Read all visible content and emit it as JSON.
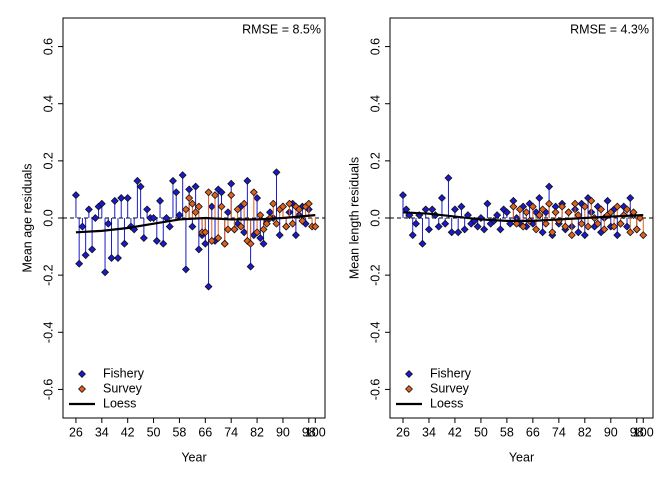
{
  "chart_data": [
    {
      "type": "scatter",
      "ylabel": "Mean age residuals",
      "xlabel": "Year",
      "annotation": "RMSE = 8.5%",
      "xlim": [
        22,
        103
      ],
      "ylim": [
        -0.7,
        0.7
      ],
      "xticks": [
        26,
        34,
        42,
        50,
        58,
        66,
        74,
        82,
        90,
        98,
        100
      ],
      "yticks": [
        -0.6,
        -0.4,
        -0.2,
        {
          "value": 0,
          "label": "0.0"
        },
        0.2,
        0.4,
        0.6
      ],
      "legend": "bottom-left",
      "series": [
        {
          "name": "Fishery",
          "color": "#1a1acc",
          "style": "points",
          "x": [
            26,
            27,
            28,
            29,
            30,
            31,
            32,
            33,
            34,
            35,
            36,
            37,
            38,
            39,
            40,
            41,
            42,
            43,
            44,
            45,
            46,
            47,
            48,
            49,
            50,
            51,
            52,
            53,
            54,
            55,
            56,
            57,
            58,
            59,
            60,
            61,
            62,
            63,
            64,
            65,
            66,
            67,
            68,
            69,
            70,
            71,
            72,
            73,
            74,
            75,
            76,
            77,
            78,
            79,
            80,
            81,
            82,
            83,
            84,
            85,
            86,
            87,
            88,
            89,
            90,
            91,
            92,
            93,
            94,
            95,
            96,
            97,
            98
          ],
          "values": [
            0.08,
            -0.16,
            -0.03,
            -0.13,
            0.03,
            -0.11,
            0,
            0.04,
            0.05,
            -0.19,
            -0.02,
            -0.14,
            0.06,
            -0.14,
            0.07,
            -0.09,
            0.07,
            -0.03,
            -0.04,
            0.13,
            0.11,
            -0.07,
            0.03,
            0,
            0,
            -0.08,
            0.06,
            -0.09,
            0,
            -0.03,
            0.13,
            0.09,
            0.01,
            0.15,
            -0.18,
            0.1,
            -0.03,
            0.11,
            -0.11,
            -0.06,
            -0.09,
            -0.24,
            0.04,
            -0.08,
            0.1,
            0.09,
            -0.09,
            0.02,
            0.12,
            -0.04,
            -0.02,
            0.04,
            -0.05,
            0.13,
            -0.17,
            -0.06,
            0.07,
            -0.07,
            -0.09,
            -0.01,
            0.02,
            0,
            0.16,
            -0.06,
            0.04,
            -0.03,
            0.02,
            0.05,
            -0.06,
            0.01,
            0.04,
            -0.02,
            0.03
          ]
        },
        {
          "name": "Survey",
          "color": "#e0601e",
          "style": "points",
          "x": [
            60,
            61,
            62,
            63,
            64,
            65,
            66,
            67,
            68,
            69,
            70,
            71,
            72,
            73,
            74,
            75,
            76,
            77,
            78,
            79,
            80,
            81,
            82,
            83,
            84,
            85,
            86,
            87,
            88,
            89,
            90,
            91,
            92,
            93,
            94,
            95,
            96,
            97,
            98,
            99,
            100
          ],
          "values": [
            0.03,
            0.07,
            0.05,
            0.02,
            0.04,
            -0.05,
            -0.05,
            0.09,
            -0.08,
            0.08,
            -0.07,
            0.04,
            -0.09,
            -0.04,
            0.08,
            -0.04,
            0.03,
            -0.03,
            0.05,
            -0.08,
            -0.09,
            0.09,
            -0.05,
            0.01,
            -0.04,
            -0.02,
            0,
            0.05,
            -0.02,
            0.03,
            0.04,
            -0.03,
            0.05,
            -0.02,
            0.04,
            0.03,
            -0.01,
            0.04,
            0.05,
            -0.03,
            -0.03
          ]
        },
        {
          "name": "Loess",
          "color": "#000000",
          "style": "line",
          "x": [
            26,
            34,
            42,
            50,
            58,
            66,
            74,
            82,
            90,
            100
          ],
          "values": [
            -0.05,
            -0.045,
            -0.035,
            -0.02,
            -0.005,
            0,
            -0.005,
            -0.005,
            0,
            0.01
          ]
        }
      ]
    },
    {
      "type": "scatter",
      "ylabel": "Mean length residuals",
      "xlabel": "Year",
      "annotation": "RMSE = 4.3%",
      "xlim": [
        22,
        103
      ],
      "ylim": [
        -0.7,
        0.7
      ],
      "xticks": [
        26,
        34,
        42,
        50,
        58,
        66,
        74,
        82,
        90,
        98,
        100
      ],
      "yticks": [
        -0.6,
        -0.4,
        -0.2,
        {
          "value": 0,
          "label": "0.0"
        },
        0.2,
        0.4,
        0.6
      ],
      "legend": "bottom-left",
      "series": [
        {
          "name": "Fishery",
          "color": "#1a1acc",
          "style": "points",
          "x": [
            26,
            27,
            28,
            29,
            30,
            31,
            32,
            33,
            34,
            35,
            36,
            37,
            38,
            39,
            40,
            41,
            42,
            43,
            44,
            45,
            46,
            47,
            48,
            49,
            50,
            51,
            52,
            53,
            54,
            55,
            56,
            57,
            58,
            59,
            60,
            61,
            62,
            63,
            64,
            65,
            66,
            67,
            68,
            69,
            70,
            71,
            72,
            73,
            74,
            75,
            76,
            77,
            78,
            79,
            80,
            81,
            82,
            83,
            84,
            85,
            86,
            87,
            88,
            89,
            90,
            91,
            92,
            93,
            94,
            95,
            96,
            97,
            98
          ],
          "values": [
            0.08,
            0.03,
            0.01,
            -0.06,
            -0.02,
            0.01,
            -0.09,
            0.03,
            -0.04,
            0.03,
            0.01,
            -0.03,
            0.07,
            -0.02,
            0.14,
            -0.05,
            0.03,
            -0.05,
            0.04,
            -0.04,
            0.01,
            -0.02,
            -0.01,
            -0.03,
            0,
            -0.04,
            0.05,
            -0.02,
            -0.01,
            0.01,
            -0.04,
            0.03,
            0.02,
            -0.02,
            0.06,
            0,
            -0.02,
            0.04,
            -0.03,
            0.05,
            -0.02,
            0.02,
            0.07,
            -0.05,
            0.02,
            0.11,
            -0.06,
            0.04,
            -0.02,
            0.05,
            -0.04,
            0.02,
            -0.03,
            0.03,
            -0.05,
            0.05,
            -0.06,
            0.07,
            0.02,
            -0.03,
            0.04,
            -0.05,
            0,
            0.06,
            -0.03,
            0.03,
            -0.06,
            -0.02,
            0.04,
            -0.03,
            0.07,
            0.01,
            -0.04
          ]
        },
        {
          "name": "Survey",
          "color": "#e0601e",
          "style": "points",
          "x": [
            60,
            61,
            62,
            63,
            64,
            65,
            66,
            67,
            68,
            69,
            70,
            71,
            72,
            73,
            74,
            75,
            76,
            77,
            78,
            79,
            80,
            81,
            82,
            83,
            84,
            85,
            86,
            87,
            88,
            89,
            90,
            91,
            92,
            93,
            94,
            95,
            96,
            97,
            98,
            99,
            100
          ],
          "values": [
            0.04,
            -0.02,
            0.03,
            -0.03,
            0.02,
            -0.01,
            0.04,
            -0.04,
            0.01,
            0.03,
            -0.02,
            0.05,
            -0.05,
            0.02,
            -0.01,
            0.04,
            -0.03,
            0.02,
            -0.06,
            0.05,
            0.01,
            -0.02,
            0.04,
            -0.03,
            0.06,
            0,
            -0.02,
            0.03,
            -0.04,
            0.01,
            0.02,
            -0.03,
            0.04,
            -0.02,
            0.01,
            0.03,
            -0.05,
            0.02,
            -0.04,
            0,
            -0.06
          ]
        },
        {
          "name": "Loess",
          "color": "#000000",
          "style": "line",
          "x": [
            26,
            34,
            42,
            50,
            58,
            66,
            74,
            82,
            90,
            100
          ],
          "values": [
            0.02,
            0.015,
            0.005,
            -0.005,
            -0.01,
            -0.01,
            -0.005,
            0,
            0.005,
            0.01
          ]
        }
      ]
    }
  ]
}
